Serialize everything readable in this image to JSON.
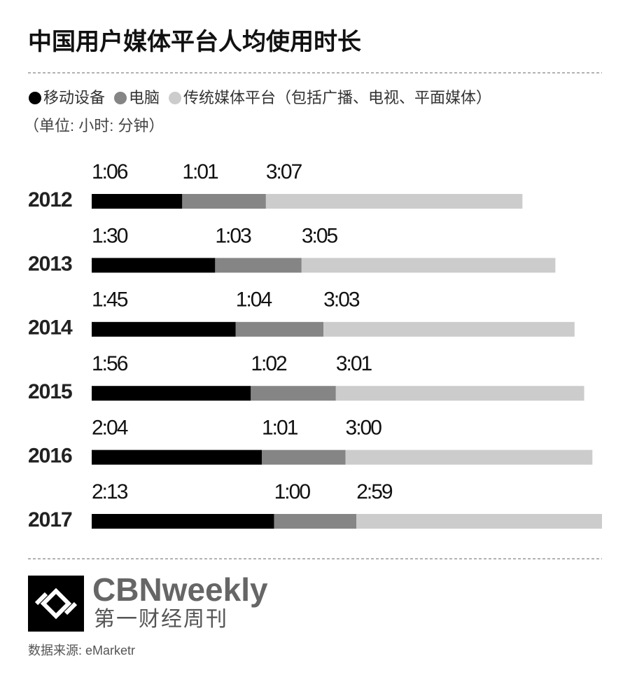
{
  "chart_data": {
    "type": "stacked-bar",
    "title": "中国用户媒体平台人均使用时长",
    "subtitle": "（单位: 小时: 分钟）",
    "categories": [
      "2012",
      "2013",
      "2014",
      "2015",
      "2016",
      "2017"
    ],
    "series": [
      {
        "name": "移动设备",
        "color": "#000000",
        "values": [
          66,
          90,
          105,
          116,
          124,
          133
        ],
        "value_labels": [
          "1:06",
          "1:30",
          "1:45",
          "1:56",
          "2:04",
          "2:13"
        ]
      },
      {
        "name": "电脑",
        "color": "#858585",
        "values": [
          61,
          63,
          64,
          62,
          61,
          60
        ],
        "value_labels": [
          "1:01",
          "1:03",
          "1:04",
          "1:02",
          "1:01",
          "1:00"
        ]
      },
      {
        "name": "传统媒体平台（包括广播、电视、平面媒体）",
        "color": "#cccccc",
        "values": [
          187,
          185,
          183,
          181,
          180,
          179
        ],
        "value_labels": [
          "3:07",
          "3:05",
          "3:03",
          "3:01",
          "3:00",
          "2:59"
        ]
      }
    ],
    "logo_text": "CBNweekly",
    "logo_subtext": "第一财经周刊",
    "source": "数据来源: eMarketr"
  }
}
